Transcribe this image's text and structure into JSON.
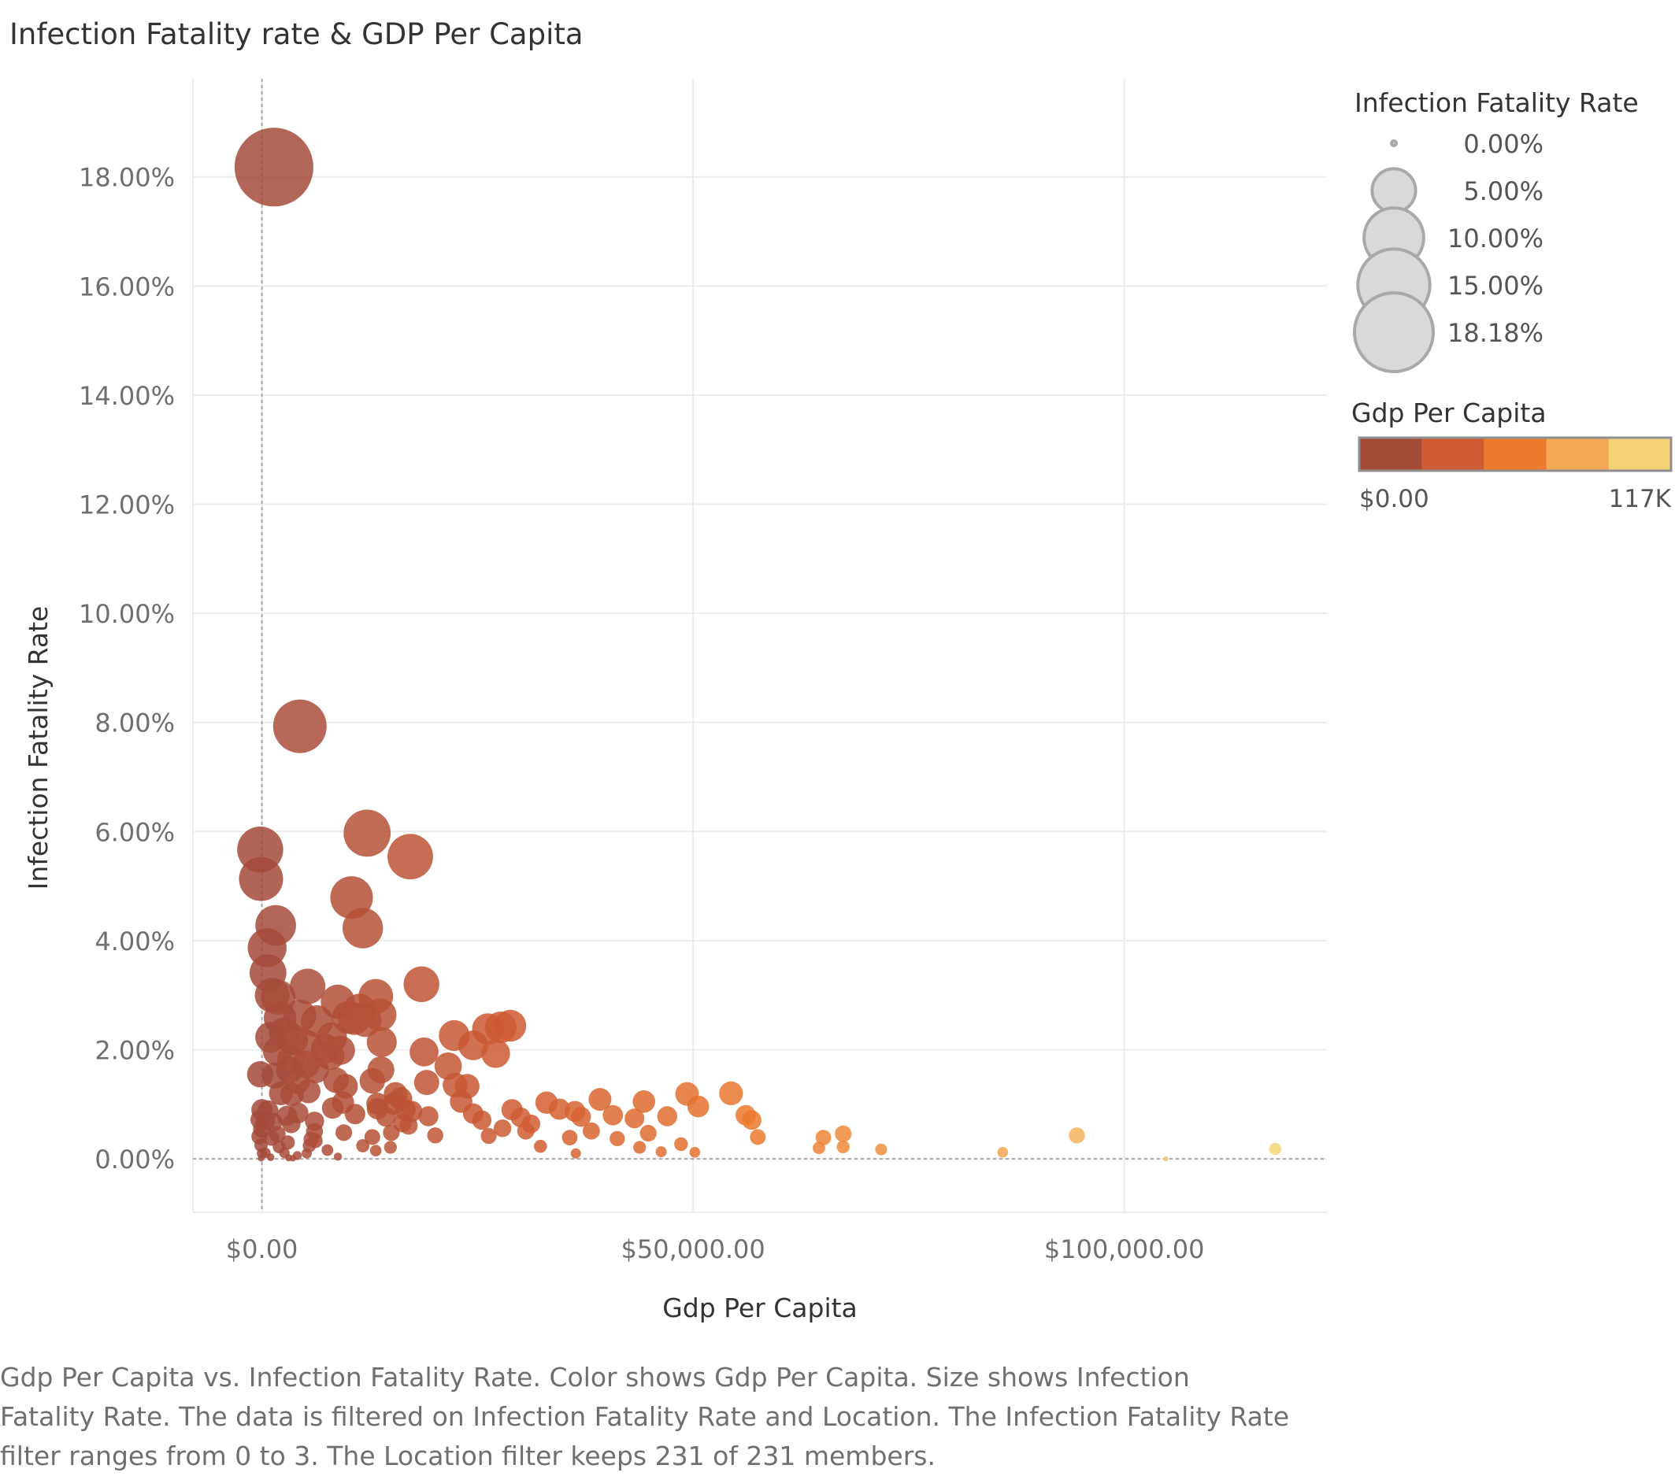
{
  "title": "Infection Fatality rate & GDP Per Capita",
  "caption": "Gdp Per Capita vs. Infection Fatality Rate.  Color shows Gdp Per Capita.  Size shows Infection Fatality Rate. The data is filtered on Infection Fatality Rate and Location. The Infection Fatality Rate filter ranges from 0 to 3. The Location filter keeps 231 of 231 members.",
  "colors": {
    "grid": "#ececec",
    "zero_line": "#a8a8a8",
    "tick_label": "#6f6f6f",
    "axis_title": "#333333",
    "legend_swatch_fill": "#d9d9d9",
    "legend_swatch_stroke": "#a9a9a9",
    "color_ramp": [
      "#a34a39",
      "#cf5b32",
      "#ec7b2d",
      "#f4a856",
      "#f5d477"
    ]
  },
  "chart_data": {
    "type": "scatter",
    "title": "Infection Fatality rate & GDP Per Capita",
    "xlabel": "Gdp Per Capita",
    "ylabel": "Infection Fatality Rate",
    "xlim": [
      -8000,
      123500
    ],
    "ylim": [
      -0.98,
      19.8
    ],
    "x_ticks": [
      0,
      50000,
      100000
    ],
    "x_tick_labels": [
      "$0.00",
      "$50,000.00",
      "$100,000.00"
    ],
    "y_ticks": [
      0,
      2,
      4,
      6,
      8,
      10,
      12,
      14,
      16,
      18
    ],
    "y_tick_labels": [
      "0.00%",
      "2.00%",
      "4.00%",
      "6.00%",
      "8.00%",
      "10.00%",
      "12.00%",
      "14.00%",
      "16.00%",
      "18.00%"
    ],
    "grid": true,
    "size_legend": {
      "title": "Infection Fatality Rate",
      "values": [
        0,
        5,
        10,
        15,
        18.18
      ],
      "labels": [
        "0.00%",
        "5.00%",
        "10.00%",
        "15.00%",
        "18.18%"
      ]
    },
    "color_legend": {
      "title": "Gdp Per Capita",
      "min_label": "$0.00",
      "max_label": "117K",
      "min": 0,
      "max": 117000
    },
    "points": [
      [
        1400,
        18.18
      ],
      [
        4400,
        7.93
      ],
      [
        12200,
        5.97
      ],
      [
        17200,
        5.54
      ],
      [
        -200,
        5.67
      ],
      [
        -100,
        5.13
      ],
      [
        10400,
        4.79
      ],
      [
        11700,
        4.23
      ],
      [
        1600,
        4.28
      ],
      [
        600,
        3.87
      ],
      [
        700,
        3.41
      ],
      [
        5300,
        3.16
      ],
      [
        18500,
        3.2
      ],
      [
        13200,
        2.98
      ],
      [
        1200,
        3.0
      ],
      [
        1900,
        2.96
      ],
      [
        8800,
        2.88
      ],
      [
        2100,
        2.58
      ],
      [
        4400,
        2.62
      ],
      [
        6400,
        2.52
      ],
      [
        10700,
        2.57
      ],
      [
        13700,
        2.64
      ],
      [
        12000,
        2.53
      ],
      [
        11300,
        2.72
      ],
      [
        10000,
        2.59
      ],
      [
        1000,
        2.23
      ],
      [
        2600,
        2.31
      ],
      [
        3600,
        2.18
      ],
      [
        5200,
        2.09
      ],
      [
        7400,
        2.02
      ],
      [
        8100,
        2.22
      ],
      [
        13900,
        2.14
      ],
      [
        1800,
        1.97
      ],
      [
        3400,
        1.82
      ],
      [
        5100,
        1.73
      ],
      [
        7900,
        1.89
      ],
      [
        9100,
        1.99
      ],
      [
        18800,
        1.96
      ],
      [
        22300,
        2.26
      ],
      [
        24500,
        2.08
      ],
      [
        26200,
        2.38
      ],
      [
        27700,
        2.41
      ],
      [
        28800,
        2.44
      ],
      [
        27100,
        1.93
      ],
      [
        -200,
        1.55
      ],
      [
        1500,
        1.53
      ],
      [
        3200,
        1.63
      ],
      [
        4100,
        1.42
      ],
      [
        6200,
        1.63
      ],
      [
        13800,
        1.63
      ],
      [
        21600,
        1.7
      ],
      [
        12800,
        1.43
      ],
      [
        19100,
        1.4
      ],
      [
        8600,
        1.44
      ],
      [
        2200,
        1.2
      ],
      [
        3500,
        1.18
      ],
      [
        5400,
        1.24
      ],
      [
        9700,
        1.33
      ],
      [
        15500,
        1.19
      ],
      [
        16100,
        1.1
      ],
      [
        22400,
        1.35
      ],
      [
        23800,
        1.33
      ],
      [
        9400,
        1.03
      ],
      [
        13400,
        1.01
      ],
      [
        15300,
        1.01
      ],
      [
        23100,
        1.05
      ],
      [
        33000,
        1.03
      ],
      [
        39200,
        1.09
      ],
      [
        44300,
        1.05
      ],
      [
        49300,
        1.19
      ],
      [
        54400,
        1.2
      ],
      [
        50600,
        0.96
      ],
      [
        0,
        0.9
      ],
      [
        700,
        0.88
      ],
      [
        2900,
        0.79
      ],
      [
        4200,
        0.84
      ],
      [
        8200,
        0.93
      ],
      [
        10800,
        0.82
      ],
      [
        13400,
        0.92
      ],
      [
        14400,
        0.77
      ],
      [
        16600,
        0.9
      ],
      [
        19300,
        0.78
      ],
      [
        24500,
        0.83
      ],
      [
        29000,
        0.9
      ],
      [
        30000,
        0.76
      ],
      [
        34500,
        0.91
      ],
      [
        36300,
        0.87
      ],
      [
        37000,
        0.77
      ],
      [
        40700,
        0.8
      ],
      [
        43200,
        0.74
      ],
      [
        47000,
        0.78
      ],
      [
        56100,
        0.8
      ],
      [
        56800,
        0.71
      ],
      [
        -200,
        0.72
      ],
      [
        400,
        0.69
      ],
      [
        1300,
        0.67
      ],
      [
        3400,
        0.64
      ],
      [
        6100,
        0.69
      ],
      [
        16300,
        0.66
      ],
      [
        25500,
        0.71
      ],
      [
        31200,
        0.64
      ],
      [
        0,
        0.55
      ],
      [
        1800,
        0.45
      ],
      [
        6100,
        0.5
      ],
      [
        9500,
        0.48
      ],
      [
        17000,
        0.61
      ],
      [
        27900,
        0.56
      ],
      [
        30600,
        0.51
      ],
      [
        38200,
        0.51
      ],
      [
        44800,
        0.47
      ],
      [
        57500,
        0.4
      ],
      [
        -300,
        0.41
      ],
      [
        1100,
        0.38
      ],
      [
        5700,
        0.36
      ],
      [
        12800,
        0.4
      ],
      [
        20100,
        0.43
      ],
      [
        26300,
        0.42
      ],
      [
        35700,
        0.39
      ],
      [
        41200,
        0.37
      ],
      [
        65100,
        0.39
      ],
      [
        67400,
        0.46
      ],
      [
        94500,
        0.43
      ],
      [
        -100,
        0.25
      ],
      [
        3000,
        0.3
      ],
      [
        5500,
        0.24
      ],
      [
        11700,
        0.24
      ],
      [
        14900,
        0.21
      ],
      [
        32300,
        0.23
      ],
      [
        43800,
        0.21
      ],
      [
        48600,
        0.27
      ],
      [
        64600,
        0.2
      ],
      [
        67400,
        0.22
      ],
      [
        71800,
        0.17
      ],
      [
        117500,
        0.18
      ],
      [
        0,
        0.1
      ],
      [
        2600,
        0.11
      ],
      [
        5200,
        0.1
      ],
      [
        13200,
        0.15
      ],
      [
        36400,
        0.1
      ],
      [
        46300,
        0.13
      ],
      [
        50200,
        0.12
      ],
      [
        85900,
        0.12
      ],
      [
        -100,
        0.01
      ],
      [
        1000,
        0.03
      ],
      [
        3100,
        0.02
      ],
      [
        3600,
        0.01
      ],
      [
        8800,
        0.04
      ],
      [
        104800,
        0.0
      ],
      [
        400,
        0.11
      ],
      [
        2000,
        0.22
      ],
      [
        4100,
        0.06
      ],
      [
        6200,
        0.33
      ],
      [
        7600,
        0.16
      ],
      [
        15000,
        0.48
      ],
      [
        17400,
        0.87
      ]
    ]
  }
}
